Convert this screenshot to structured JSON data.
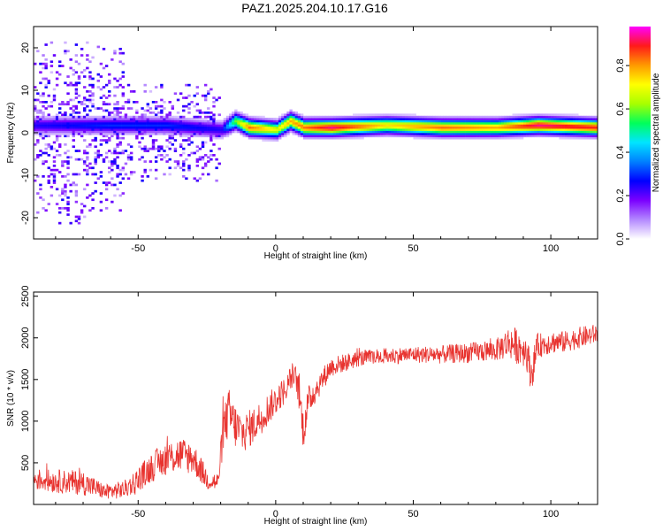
{
  "figure_title": "PAZ1.2025.204.10.17.G16",
  "colors": {
    "snr_line": "#e8332f",
    "colormap": [
      "#ffffff",
      "#b388ff",
      "#7b00ff",
      "#0000ff",
      "#0080ff",
      "#00e5ff",
      "#00ff5a",
      "#a8ff00",
      "#ffff00",
      "#ff9900",
      "#ff1a1a",
      "#ff00ff"
    ]
  },
  "chart_data": [
    {
      "type": "heatmap",
      "xlabel": "Height of straight line (km)",
      "ylabel": "Frequency (Hz)",
      "colorbar_label": "Normalized spectral amplitude",
      "xlim": [
        -88,
        117
      ],
      "ylim": [
        -25,
        25
      ],
      "clim": [
        0.0,
        0.98
      ],
      "x_ticks": [
        -50,
        0,
        50,
        100
      ],
      "x_tick_labels": [
        "-50",
        "0",
        "50",
        "100"
      ],
      "y_ticks": [
        -20,
        -10,
        0,
        10,
        20
      ],
      "y_tick_labels": [
        "-20",
        "-10",
        "0",
        "10",
        "20"
      ],
      "colorbar_ticks": [
        0.0,
        0.2,
        0.4,
        0.6,
        0.8
      ],
      "colorbar_tick_labels": [
        "0.0",
        "0.2",
        "0.4",
        "0.6",
        "0.8"
      ],
      "colormap": "rainbow (white-purple-blue-cyan-green-yellow-red-magenta)",
      "grid": false,
      "band": {
        "x": [
          -88,
          -60,
          -40,
          -20,
          -15,
          -10,
          0,
          5,
          10,
          20,
          40,
          60,
          80,
          95,
          117
        ],
        "center_freq": [
          1.5,
          1.5,
          1.5,
          0.5,
          2.5,
          1.0,
          0.5,
          2.5,
          1.0,
          1.0,
          1.5,
          1.0,
          1.0,
          1.5,
          1.0
        ],
        "peak_amplitude": [
          0.25,
          0.3,
          0.3,
          0.25,
          0.6,
          0.85,
          0.7,
          0.8,
          0.85,
          0.95,
          0.75,
          0.85,
          0.8,
          0.95,
          0.9
        ]
      }
    },
    {
      "type": "line",
      "xlabel": "Height of straight line (km)",
      "ylabel": "SNR (10 * v/v)",
      "xlim": [
        -88,
        117
      ],
      "ylim": [
        0,
        2550
      ],
      "x_ticks": [
        -50,
        0,
        50,
        100
      ],
      "x_tick_labels": [
        "-50",
        "0",
        "50",
        "100"
      ],
      "y_ticks": [
        500,
        1000,
        1500,
        2000,
        2500
      ],
      "y_tick_labels": [
        "500",
        "1000",
        "1500",
        "2000",
        "2500"
      ],
      "grid": false,
      "series": [
        {
          "x": [
            -88,
            -80,
            -70,
            -62,
            -55,
            -50,
            -45,
            -40,
            -35,
            -30,
            -25,
            -21,
            -19,
            -17,
            -15,
            -12,
            -8,
            -4,
            0,
            4,
            6,
            8,
            10,
            12,
            16,
            20,
            25,
            30,
            40,
            50,
            60,
            70,
            80,
            85,
            88,
            91,
            93,
            95,
            100,
            105,
            110,
            117
          ],
          "values": [
            300,
            280,
            260,
            150,
            180,
            300,
            450,
            550,
            600,
            560,
            300,
            260,
            900,
            1100,
            950,
            850,
            950,
            1100,
            1250,
            1400,
            1550,
            1450,
            900,
            1250,
            1450,
            1650,
            1700,
            1750,
            1780,
            1800,
            1800,
            1820,
            1850,
            1950,
            1900,
            1850,
            1550,
            1900,
            1950,
            1950,
            2000,
            2050
          ],
          "noise": [
            130,
            140,
            150,
            90,
            110,
            150,
            180,
            200,
            220,
            200,
            130,
            120,
            260,
            300,
            280,
            240,
            220,
            200,
            180,
            160,
            160,
            200,
            260,
            180,
            150,
            120,
            110,
            100,
            100,
            100,
            110,
            120,
            130,
            200,
            220,
            200,
            220,
            150,
            140,
            130,
            130,
            120
          ]
        }
      ]
    }
  ]
}
